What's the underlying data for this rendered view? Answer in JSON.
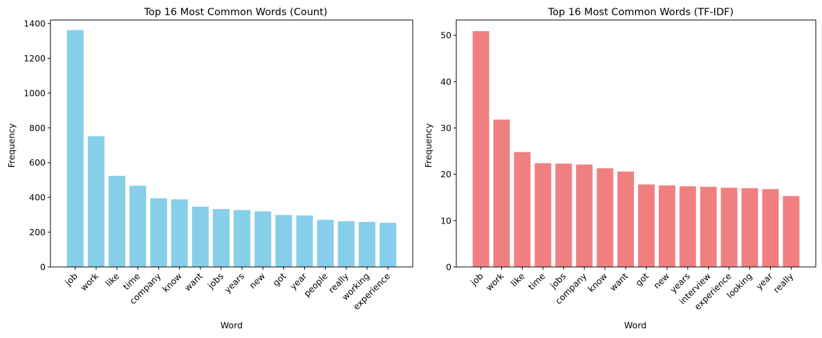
{
  "chart_data": [
    {
      "type": "bar",
      "title": "Top 16 Most Common Words (Count)",
      "xlabel": "Word",
      "ylabel": "Frequency",
      "color": "#87ceeb",
      "ylim": [
        0,
        1420
      ],
      "yticks": [
        0,
        200,
        400,
        600,
        800,
        1000,
        1200,
        1400
      ],
      "categories": [
        "job",
        "work",
        "like",
        "time",
        "company",
        "know",
        "want",
        "jobs",
        "years",
        "new",
        "got",
        "year",
        "people",
        "really",
        "working",
        "experience"
      ],
      "values": [
        1362,
        752,
        524,
        467,
        395,
        389,
        347,
        333,
        327,
        320,
        299,
        296,
        271,
        263,
        259,
        254
      ],
      "grid": false
    },
    {
      "type": "bar",
      "title": "Top 16 Most Common Words (TF-IDF)",
      "xlabel": "Word",
      "ylabel": "Frequency",
      "color": "#f08080",
      "ylim": [
        0,
        53.3
      ],
      "yticks": [
        0,
        10,
        20,
        30,
        40,
        50
      ],
      "categories": [
        "job",
        "work",
        "like",
        "time",
        "jobs",
        "company",
        "know",
        "want",
        "got",
        "new",
        "years",
        "interview",
        "experience",
        "looking",
        "year",
        "really"
      ],
      "values": [
        50.9,
        31.8,
        24.8,
        22.4,
        22.3,
        22.1,
        21.3,
        20.6,
        17.8,
        17.6,
        17.4,
        17.3,
        17.1,
        17.0,
        16.8,
        15.3
      ],
      "grid": false
    }
  ]
}
